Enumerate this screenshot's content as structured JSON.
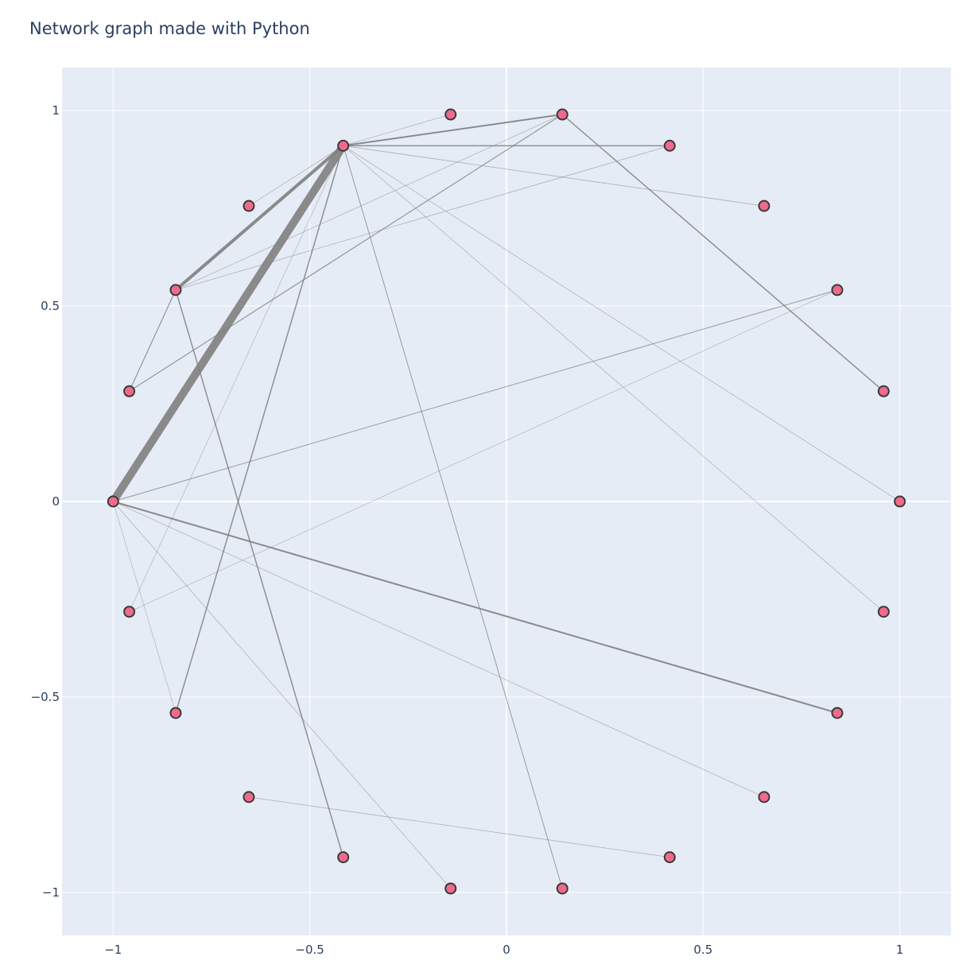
{
  "chart_data": {
    "type": "network",
    "title": "Network graph made with Python",
    "xlim": [
      -1.13,
      1.13
    ],
    "ylim": [
      -1.11,
      1.11
    ],
    "x_ticks": [
      {
        "value": -1,
        "label": "−1"
      },
      {
        "value": -0.5,
        "label": "−0.5"
      },
      {
        "value": 0,
        "label": "0"
      },
      {
        "value": 0.5,
        "label": "0.5"
      },
      {
        "value": 1,
        "label": "1"
      }
    ],
    "y_ticks": [
      {
        "value": 1,
        "label": "1"
      },
      {
        "value": 0.5,
        "label": "0.5"
      },
      {
        "value": 0,
        "label": "0"
      },
      {
        "value": -0.5,
        "label": "−0.5"
      },
      {
        "value": -1,
        "label": "−1"
      }
    ],
    "grid": true,
    "legend": false,
    "colors": {
      "plot_bg": "#e5ecf6",
      "grid": "#ffffff",
      "node_fill": "#ef6a8c",
      "node_stroke": "#3a3a3a",
      "edge": "#808080"
    },
    "nodes": [
      {
        "id": 0,
        "x": 1.0,
        "y": 0.0
      },
      {
        "id": 1,
        "x": 0.959,
        "y": 0.282
      },
      {
        "id": 2,
        "x": 0.841,
        "y": 0.541
      },
      {
        "id": 3,
        "x": 0.655,
        "y": 0.756
      },
      {
        "id": 4,
        "x": 0.415,
        "y": 0.91
      },
      {
        "id": 5,
        "x": 0.142,
        "y": 0.99
      },
      {
        "id": 6,
        "x": -0.142,
        "y": 0.99
      },
      {
        "id": 7,
        "x": -0.415,
        "y": 0.91
      },
      {
        "id": 8,
        "x": -0.655,
        "y": 0.756
      },
      {
        "id": 9,
        "x": -0.841,
        "y": 0.541
      },
      {
        "id": 10,
        "x": -0.959,
        "y": 0.282
      },
      {
        "id": 11,
        "x": -1.0,
        "y": 0.0
      },
      {
        "id": 12,
        "x": -0.959,
        "y": -0.282
      },
      {
        "id": 13,
        "x": -0.841,
        "y": -0.541
      },
      {
        "id": 14,
        "x": -0.655,
        "y": -0.756
      },
      {
        "id": 15,
        "x": -0.415,
        "y": -0.91
      },
      {
        "id": 16,
        "x": -0.142,
        "y": -0.99
      },
      {
        "id": 17,
        "x": 0.142,
        "y": -0.99
      },
      {
        "id": 18,
        "x": 0.415,
        "y": -0.91
      },
      {
        "id": 19,
        "x": 0.655,
        "y": -0.756
      },
      {
        "id": 20,
        "x": 0.841,
        "y": -0.541
      },
      {
        "id": 21,
        "x": 0.959,
        "y": -0.282
      }
    ],
    "edges": [
      {
        "source": 7,
        "target": 11,
        "weight": 10,
        "opacity": 0.9
      },
      {
        "source": 7,
        "target": 9,
        "weight": 4,
        "opacity": 0.9
      },
      {
        "source": 7,
        "target": 5,
        "weight": 2,
        "opacity": 0.9
      },
      {
        "source": 7,
        "target": 4,
        "weight": 1.5,
        "opacity": 0.85
      },
      {
        "source": 7,
        "target": 6,
        "weight": 0.8,
        "opacity": 0.5
      },
      {
        "source": 7,
        "target": 8,
        "weight": 0.8,
        "opacity": 0.5
      },
      {
        "source": 7,
        "target": 3,
        "weight": 0.8,
        "opacity": 0.6
      },
      {
        "source": 7,
        "target": 0,
        "weight": 0.8,
        "opacity": 0.5
      },
      {
        "source": 7,
        "target": 21,
        "weight": 0.8,
        "opacity": 0.5
      },
      {
        "source": 7,
        "target": 17,
        "weight": 1,
        "opacity": 0.75
      },
      {
        "source": 7,
        "target": 13,
        "weight": 1.5,
        "opacity": 0.85
      },
      {
        "source": 7,
        "target": 12,
        "weight": 0.8,
        "opacity": 0.45
      },
      {
        "source": 5,
        "target": 1,
        "weight": 1.5,
        "opacity": 0.85
      },
      {
        "source": 5,
        "target": 10,
        "weight": 1.2,
        "opacity": 0.8
      },
      {
        "source": 5,
        "target": 9,
        "weight": 0.8,
        "opacity": 0.5
      },
      {
        "source": 4,
        "target": 9,
        "weight": 0.8,
        "opacity": 0.55
      },
      {
        "source": 9,
        "target": 10,
        "weight": 1.2,
        "opacity": 0.8
      },
      {
        "source": 9,
        "target": 15,
        "weight": 1.5,
        "opacity": 0.85
      },
      {
        "source": 11,
        "target": 2,
        "weight": 1,
        "opacity": 0.75
      },
      {
        "source": 11,
        "target": 20,
        "weight": 2,
        "opacity": 0.9
      },
      {
        "source": 11,
        "target": 19,
        "weight": 0.8,
        "opacity": 0.5
      },
      {
        "source": 11,
        "target": 16,
        "weight": 0.8,
        "opacity": 0.5
      },
      {
        "source": 11,
        "target": 13,
        "weight": 0.8,
        "opacity": 0.45
      },
      {
        "source": 12,
        "target": 2,
        "weight": 0.8,
        "opacity": 0.45
      },
      {
        "source": 14,
        "target": 18,
        "weight": 0.8,
        "opacity": 0.55
      }
    ]
  }
}
